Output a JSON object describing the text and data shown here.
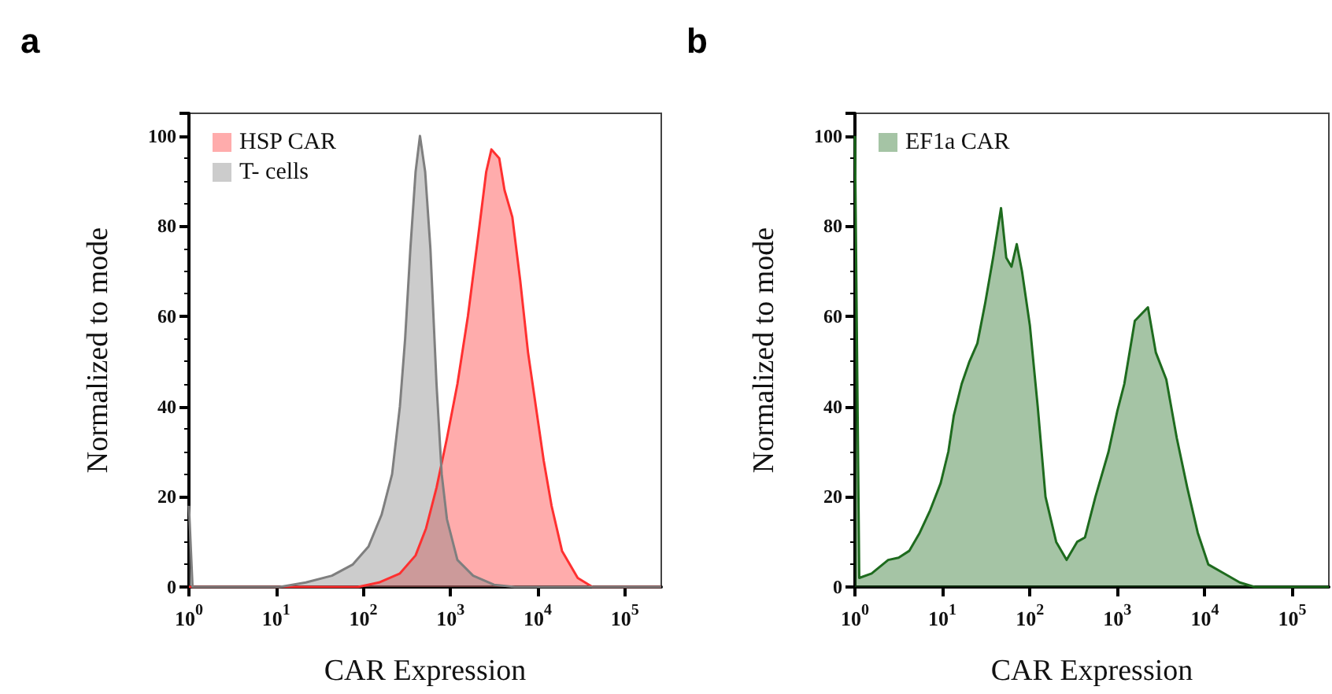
{
  "chart_data": [
    {
      "type": "area",
      "title": "a",
      "xlabel": "CAR Expression",
      "ylabel": "Normalized to mode",
      "log": "x",
      "grid": false,
      "legend": "top left",
      "xlim": [
        1,
        262144
      ],
      "ylim": [
        0,
        105
      ],
      "xticks": [
        {
          "value": 1,
          "label": "10$^{0}$"
        },
        {
          "value": 10,
          "label": "10$^{1}$"
        },
        {
          "value": 100,
          "label": "10$^{2}$"
        },
        {
          "value": 1000,
          "label": "10$^{3}$"
        },
        {
          "value": 10000,
          "label": "10$^{4}$"
        },
        {
          "value": 100000,
          "label": "10$^{5}$"
        }
      ],
      "yticks": [
        0,
        20,
        40,
        60,
        80,
        100
      ],
      "series": [
        {
          "name": "HSP CAR",
          "color": "#ff3030",
          "x": [
            1,
            87,
            151,
            263,
            398,
            525,
            692,
            912,
            1202,
            1585,
            2089,
            2570,
            2951,
            3631,
            4169,
            5129,
            6310,
            7762,
            9550,
            11749,
            14454,
            19055,
            28840,
            42658,
            262144
          ],
          "values": [
            0,
            0,
            1,
            3,
            7,
            13,
            22,
            33,
            45,
            60,
            78,
            92,
            97,
            95,
            88,
            82,
            68,
            52,
            40,
            28,
            18,
            8,
            2,
            0,
            0
          ]
        },
        {
          "name": "T- cells",
          "color": "#7f7f7f",
          "x": [
            1,
            1.1,
            11,
            21.9,
            43.7,
            75.9,
            115,
            162,
            214,
            263,
            302,
            347,
            398,
            447,
            513,
            589,
            692,
            794,
            912,
            1202,
            1820,
            3162,
            5495,
            262144
          ],
          "values": [
            18,
            0,
            0,
            1,
            2.5,
            5,
            9,
            16,
            25,
            40,
            55,
            75,
            92,
            100,
            92,
            75,
            45,
            25,
            15,
            6,
            2.5,
            0.5,
            0,
            0
          ]
        }
      ]
    },
    {
      "type": "area",
      "title": "b",
      "xlabel": "CAR Expression",
      "ylabel": "Normalized to mode",
      "log": "x",
      "grid": false,
      "legend": "top left",
      "xlim": [
        1,
        262144
      ],
      "ylim": [
        0,
        105
      ],
      "xticks": [
        {
          "value": 1,
          "label": "10$^{0}$"
        },
        {
          "value": 10,
          "label": "10$^{1}$"
        },
        {
          "value": 100,
          "label": "10$^{2}$"
        },
        {
          "value": 1000,
          "label": "10$^{3}$"
        },
        {
          "value": 10000,
          "label": "10$^{4}$"
        },
        {
          "value": 100000,
          "label": "10$^{5}$"
        }
      ],
      "yticks": [
        0,
        20,
        40,
        60,
        80,
        100
      ],
      "series": [
        {
          "name": "EF1a CAR",
          "color": "#1e6b1e",
          "x": [
            1,
            1.12,
            1.55,
            2.4,
            3.16,
            4.17,
            5.5,
            7.24,
            9.55,
            11.7,
            13.5,
            16.6,
            20.4,
            25.1,
            30.9,
            38,
            46.8,
            53.7,
            61.7,
            70.8,
            81.3,
            100,
            123,
            151,
            200,
            263,
            347,
            427,
            562,
            794,
            1000,
            1202,
            1585,
            2239,
            2754,
            3631,
            4786,
            6310,
            8318,
            10965,
            16596,
            25119,
            37154,
            262144
          ],
          "values": [
            100,
            2,
            3,
            6,
            6.5,
            8,
            12,
            17,
            23,
            30,
            38,
            45,
            50,
            54,
            63,
            73,
            84,
            73,
            71,
            76,
            70,
            58,
            40,
            20,
            10,
            6,
            10,
            11,
            20,
            30,
            39,
            45,
            59,
            62,
            52,
            46,
            33,
            22,
            12,
            5,
            3,
            1,
            0,
            0
          ]
        }
      ]
    }
  ]
}
